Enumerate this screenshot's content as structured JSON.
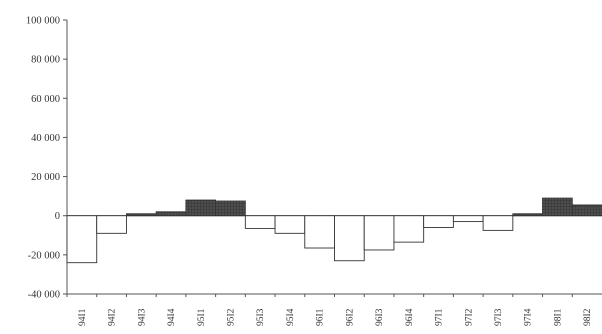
{
  "chart_data": {
    "type": "bar",
    "categories": [
      "94I1",
      "94I2",
      "94I3",
      "94I4",
      "95I1",
      "95I2",
      "95I3",
      "95I4",
      "96I1",
      "96I2",
      "96I3",
      "96I4",
      "97I1",
      "97I2",
      "97I3",
      "97I4",
      "98I1",
      "98I2"
    ],
    "values": [
      -24000,
      -9000,
      1000,
      2000,
      8000,
      7500,
      -6500,
      -9000,
      -16500,
      -23000,
      -17500,
      -13500,
      -6000,
      -3000,
      -7500,
      1000,
      9000,
      5500
    ],
    "ylim": [
      -40000,
      100000
    ],
    "yticks": [
      -40000,
      -20000,
      0,
      20000,
      40000,
      60000,
      80000,
      100000
    ],
    "ytick_labels": [
      "-40 000",
      "-20 000",
      "0",
      "20 000",
      "40 000",
      "60 000",
      "80 000",
      "100 000"
    ],
    "title": "",
    "xlabel": "",
    "ylabel": "",
    "grid": false,
    "colors": {
      "positive_fill": "#444444",
      "negative_fill": "#ffffff",
      "bar_stroke": "#333333",
      "axis": "#555555"
    }
  }
}
